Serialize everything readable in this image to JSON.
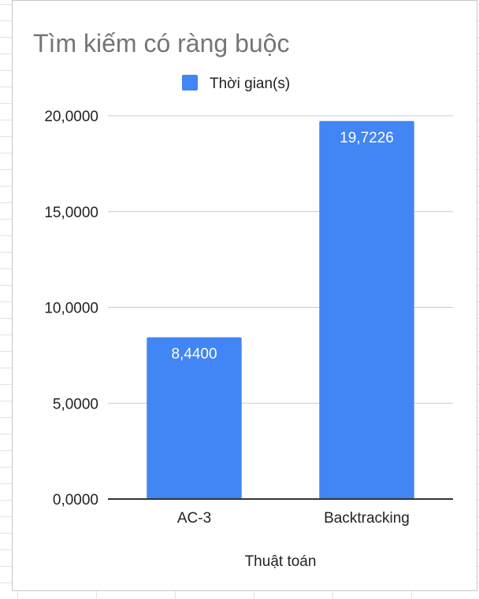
{
  "chart_data": {
    "type": "bar",
    "title": "Tìm kiếm có ràng buộc",
    "xlabel": "Thuật toán",
    "ylabel": "",
    "categories": [
      "AC-3",
      "Backtracking"
    ],
    "series": [
      {
        "name": "Thời gian(s)",
        "values": [
          8.44,
          19.7226
        ]
      }
    ],
    "data_labels": [
      "8,4400",
      "19,7226"
    ],
    "yticks": [
      0,
      5,
      10,
      15,
      20
    ],
    "ytick_labels": [
      "0,0000",
      "5,0000",
      "10,0000",
      "15,0000",
      "20,0000"
    ],
    "ylim": [
      0,
      20
    ],
    "grid": true,
    "legend_position": "top",
    "colors": {
      "bar": "#4285f4",
      "grid": "#cccccc",
      "axis": "#333333"
    }
  }
}
